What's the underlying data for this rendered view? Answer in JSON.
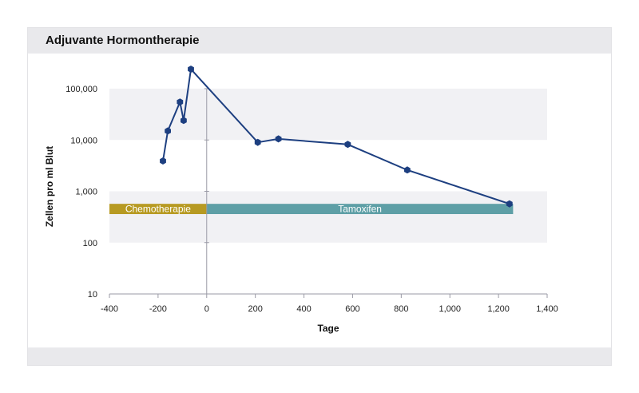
{
  "title": "Adjuvante Hormontherapie",
  "chart_data": {
    "type": "line",
    "xlabel": "Tage",
    "ylabel": "Zellen pro ml Blut",
    "xlim": [
      -400,
      1400
    ],
    "ylim": [
      10,
      100000
    ],
    "y_scale": "log",
    "x_ticks": [
      "-400",
      "-200",
      "0",
      "200",
      "400",
      "600",
      "800",
      "1,000",
      "1,200",
      "1,400"
    ],
    "y_ticks": [
      "10",
      "100",
      "1,000",
      "10,000",
      "100,000"
    ],
    "series": [
      {
        "x": [
          -180,
          -160,
          -110,
          -95,
          -65,
          210,
          295,
          580,
          825,
          1245
        ],
        "y": [
          3900,
          15000,
          55000,
          24000,
          240000,
          9000,
          10500,
          8200,
          2600,
          570
        ],
        "color": "#1d3f80"
      }
    ],
    "annotations": [
      {
        "label": "Chemotherapie",
        "x_start": -400,
        "x_end": 0,
        "y_low": 360,
        "y_high": 570,
        "color": "#b79a22"
      },
      {
        "label": "Tamoxifen",
        "x_start": 0,
        "x_end": 1260,
        "y_low": 360,
        "y_high": 570,
        "color": "#5e9fa6"
      }
    ],
    "bands": [
      [
        10000,
        100000
      ],
      [
        100,
        1000
      ]
    ],
    "vline_x": 0,
    "grid": false,
    "legend": "none"
  },
  "colors": {
    "band": "#f1f1f4",
    "axis": "#9a9aa6",
    "line": "#1d3f80"
  }
}
